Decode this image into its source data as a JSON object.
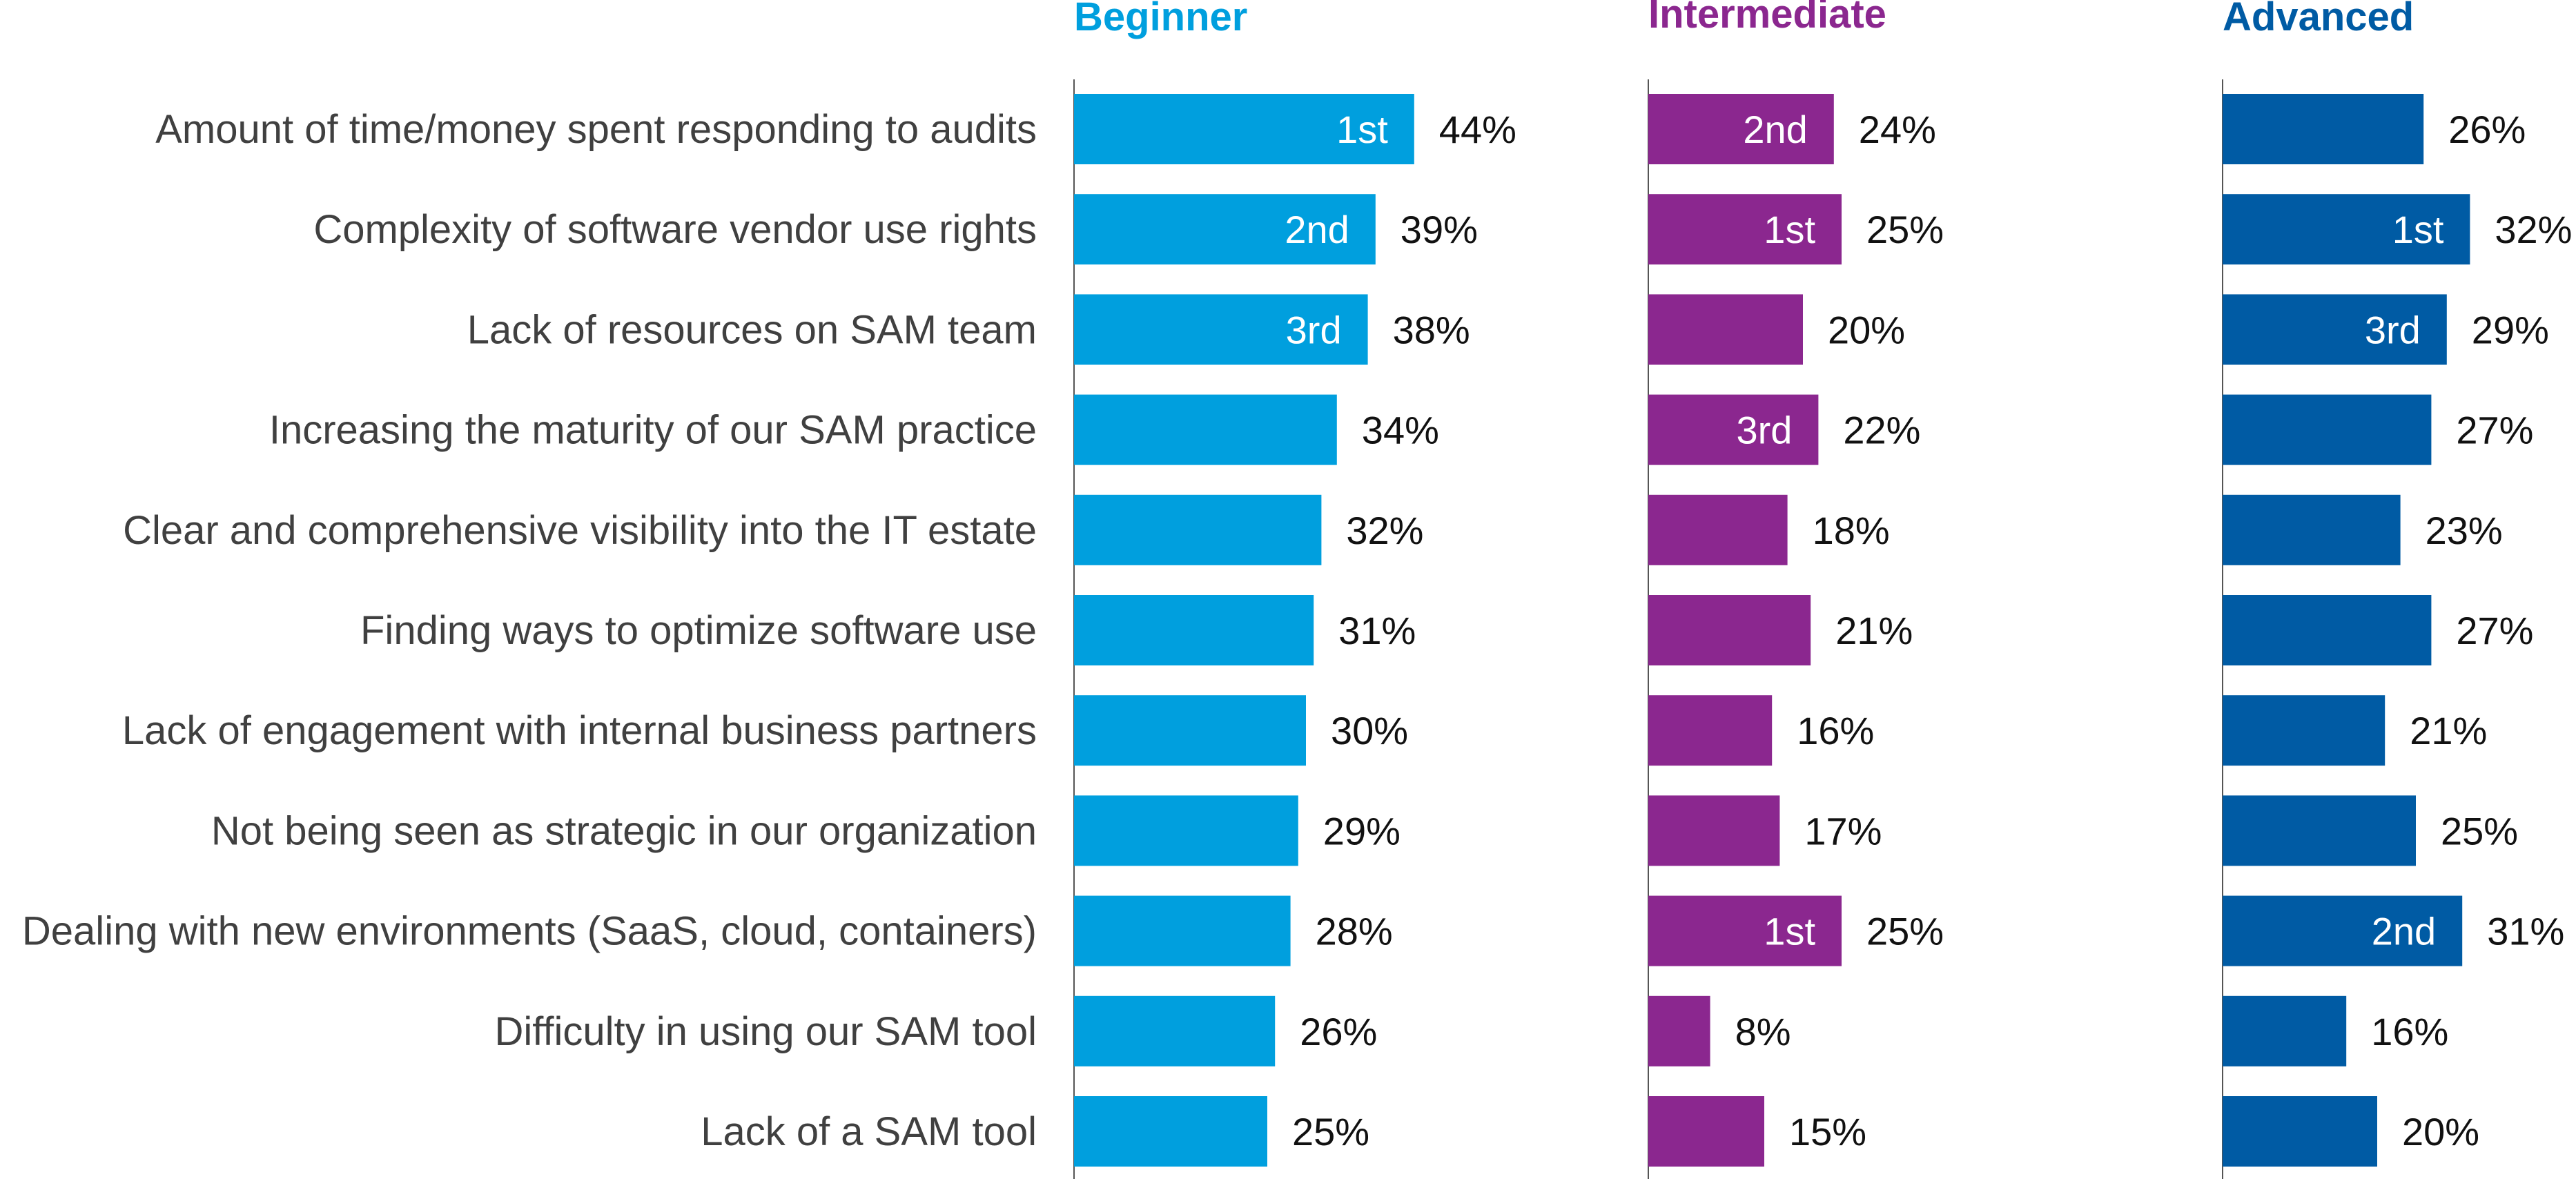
{
  "chart_data": {
    "type": "bar",
    "orientation": "horizontal",
    "categories": [
      "Amount of time/money spent responding to audits",
      "Complexity of software vendor use rights",
      "Lack of resources on SAM team",
      "Increasing the maturity of our SAM practice",
      "Clear and comprehensive visibility into the IT estate",
      "Finding ways to optimize software use",
      "Lack of engagement with internal business partners",
      "Not being seen as strategic in our organization",
      "Dealing with new environments (SaaS, cloud, containers)",
      "Difficulty in using our SAM tool",
      "Lack of a SAM tool"
    ],
    "series": [
      {
        "name": "Beginner",
        "color": "#009fde",
        "values": [
          44,
          39,
          38,
          34,
          32,
          31,
          30,
          29,
          28,
          26,
          25
        ],
        "value_labels": [
          "44%",
          "39%",
          "38%",
          "34%",
          "32%",
          "31%",
          "30%",
          "29%",
          "28%",
          "26%",
          "25%"
        ],
        "ranks": [
          "1st",
          "2nd",
          "3rd",
          "",
          "",
          "",
          "",
          "",
          "",
          "",
          ""
        ]
      },
      {
        "name": "Intermediate",
        "color": "#8b278f",
        "values": [
          24,
          25,
          20,
          22,
          18,
          21,
          16,
          17,
          25,
          8,
          15
        ],
        "value_labels": [
          "24%",
          "25%",
          "20%",
          "22%",
          "18%",
          "21%",
          "16%",
          "17%",
          "25%",
          "8%",
          "15%"
        ],
        "ranks": [
          "2nd",
          "1st",
          "",
          "3rd",
          "",
          "",
          "",
          "",
          "1st",
          "",
          ""
        ]
      },
      {
        "name": "Advanced",
        "color": "#005ba4",
        "values": [
          26,
          32,
          29,
          27,
          23,
          27,
          21,
          25,
          31,
          16,
          20
        ],
        "value_labels": [
          "26%",
          "32%",
          "29%",
          "27%",
          "23%",
          "27%",
          "21%",
          "25%",
          "31%",
          "16%",
          "20%"
        ],
        "ranks": [
          "",
          "1st",
          "3rd",
          "",
          "",
          "",
          "",
          "",
          "2nd",
          "",
          ""
        ]
      }
    ],
    "xlim": [
      0,
      50
    ],
    "grid": false,
    "legend": "none"
  }
}
